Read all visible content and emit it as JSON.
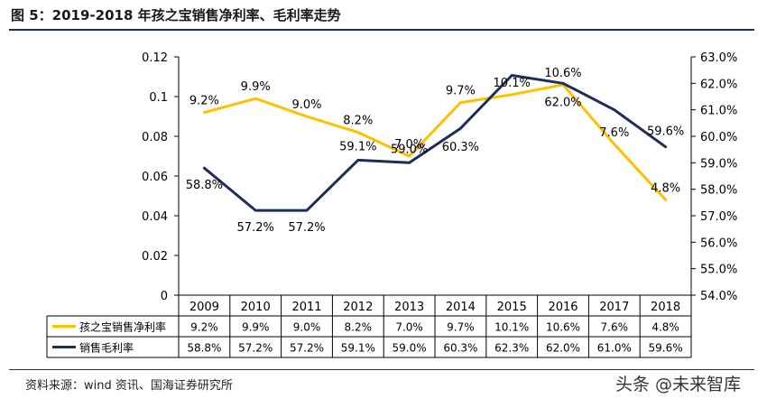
{
  "title": "图 5：2019-2018 年孩之宝销售净利率、毛利率走势",
  "source": "资料来源：wind 资讯、国海证券研究所",
  "watermark": "头条 @未来智库",
  "colors": {
    "net_margin": "#FFC000",
    "gross_margin": "#1F2D5A"
  },
  "chart_data": {
    "type": "line",
    "categories": [
      "2009",
      "2010",
      "2011",
      "2012",
      "2013",
      "2014",
      "2015",
      "2016",
      "2017",
      "2018"
    ],
    "y_left": {
      "ylim": [
        0,
        0.12
      ],
      "ticks": [
        "0",
        "0.02",
        "0.04",
        "0.06",
        "0.08",
        "0.1",
        "0.12"
      ]
    },
    "y_right": {
      "ylim": [
        54.0,
        63.0
      ],
      "ticks": [
        "54.0%",
        "55.0%",
        "56.0%",
        "57.0%",
        "58.0%",
        "59.0%",
        "60.0%",
        "61.0%",
        "62.0%",
        "63.0%"
      ]
    },
    "series": [
      {
        "name": "孩之宝销售净利率",
        "axis": "left",
        "values": [
          0.092,
          0.099,
          0.09,
          0.082,
          0.07,
          0.097,
          0.101,
          0.106,
          0.076,
          0.048
        ],
        "labels": [
          "9.2%",
          "9.9%",
          "9.0%",
          "8.2%",
          "7.0%",
          "9.7%",
          "10.1%",
          "10.6%",
          "7.6%",
          "4.8%"
        ]
      },
      {
        "name": "销售毛利率",
        "axis": "right",
        "values": [
          58.8,
          57.2,
          57.2,
          59.1,
          59.0,
          60.3,
          62.3,
          62.0,
          61.0,
          59.6
        ],
        "labels": [
          "58.8%",
          "57.2%",
          "57.2%",
          "59.1%",
          "59.0%",
          "60.3%",
          "62.3%",
          "62.0%",
          "61.0%",
          "59.6%"
        ]
      }
    ],
    "data_labels_shown": [
      [
        "9.2%",
        "9.9%",
        "9.0%",
        "8.2%",
        "7.0%",
        "9.7%",
        "10.1%",
        "10.6%",
        "7.6%",
        "4.8%"
      ],
      [
        "58.8%",
        "57.2%",
        "57.2%",
        "59.1%",
        "59.0%",
        "60.3%",
        null,
        "62.0%",
        null,
        "59.6%"
      ]
    ],
    "grid": false,
    "legend": "data-table"
  }
}
